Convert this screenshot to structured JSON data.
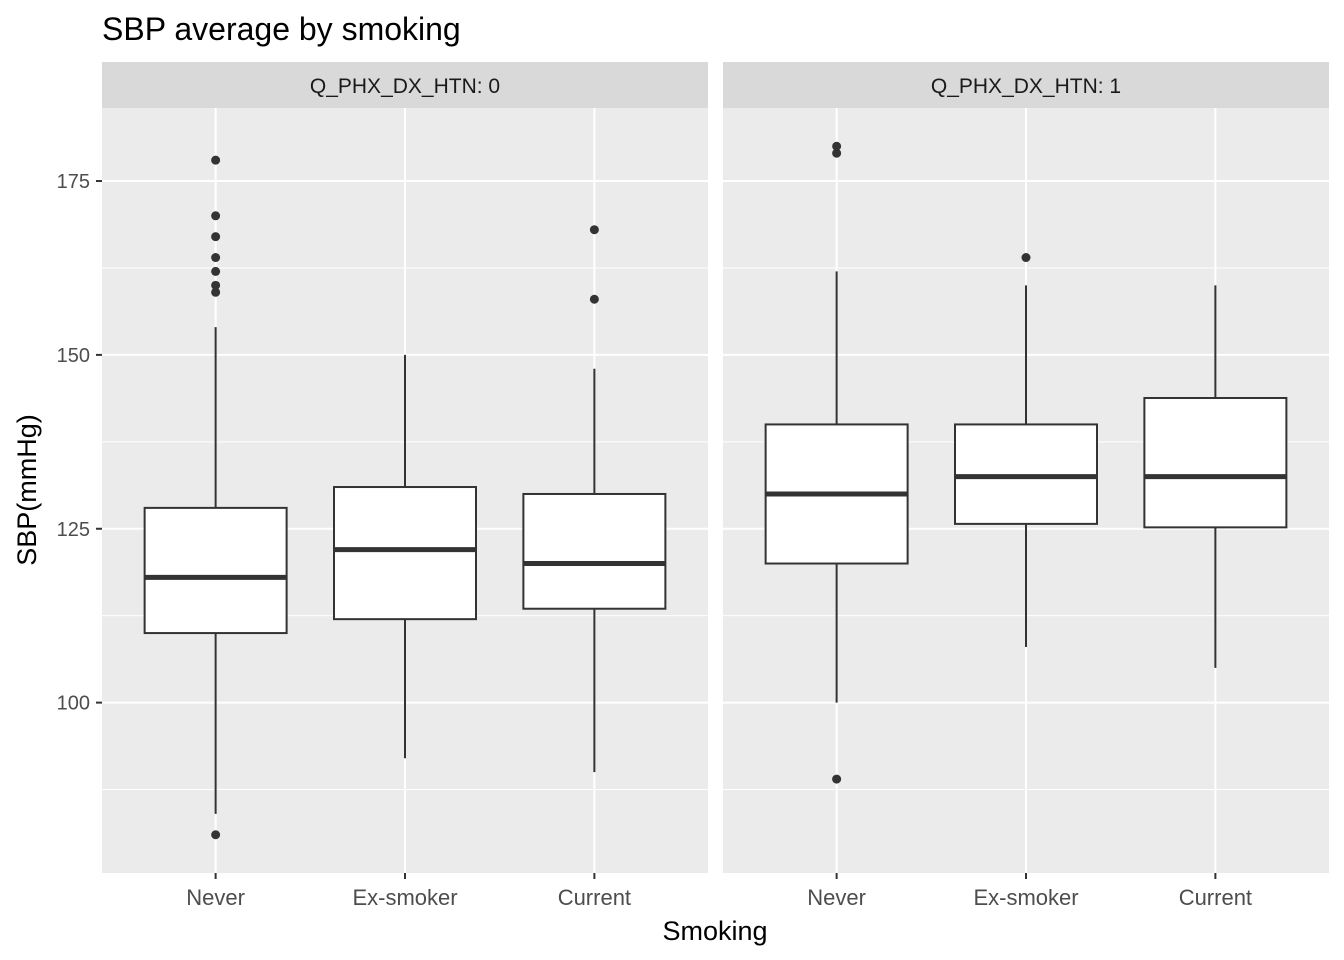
{
  "chart_data": {
    "type": "boxplot",
    "title": "SBP average by smoking",
    "xlabel": "Smoking",
    "ylabel": "SBP(mmHg)",
    "ylim": [
      75.5,
      185.5
    ],
    "yticks": [
      100,
      125,
      150,
      175
    ],
    "categories": [
      "Never",
      "Ex-smoker",
      "Current"
    ],
    "colors": {
      "panel_bg": "#EBEBEB",
      "strip_bg": "#D9D9D9",
      "grid": "#FFFFFF",
      "box_fill": "#FFFFFF",
      "box_line": "#333333",
      "tick": "#333333"
    },
    "facets": [
      {
        "label": "Q_PHX_DX_HTN: 0",
        "boxes": [
          {
            "category": "Never",
            "lower_whisker": 84,
            "q1": 110,
            "median": 118,
            "q3": 128,
            "upper_whisker": 154,
            "outliers": [
              159,
              160,
              162,
              164,
              167,
              170,
              178,
              81
            ]
          },
          {
            "category": "Ex-smoker",
            "lower_whisker": 92,
            "q1": 112,
            "median": 122,
            "q3": 131,
            "upper_whisker": 150,
            "outliers": []
          },
          {
            "category": "Current",
            "lower_whisker": 90,
            "q1": 113.5,
            "median": 120,
            "q3": 130,
            "upper_whisker": 148,
            "outliers": [
              158,
              168
            ]
          }
        ]
      },
      {
        "label": "Q_PHX_DX_HTN: 1",
        "boxes": [
          {
            "category": "Never",
            "lower_whisker": 100,
            "q1": 120,
            "median": 130,
            "q3": 140,
            "upper_whisker": 162,
            "outliers": [
              179,
              180,
              89
            ]
          },
          {
            "category": "Ex-smoker",
            "lower_whisker": 108,
            "q1": 125.7,
            "median": 132.5,
            "q3": 140,
            "upper_whisker": 160,
            "outliers": [
              164
            ]
          },
          {
            "category": "Current",
            "lower_whisker": 105,
            "q1": 125.2,
            "median": 132.5,
            "q3": 143.8,
            "upper_whisker": 160,
            "outliers": []
          }
        ]
      }
    ]
  }
}
